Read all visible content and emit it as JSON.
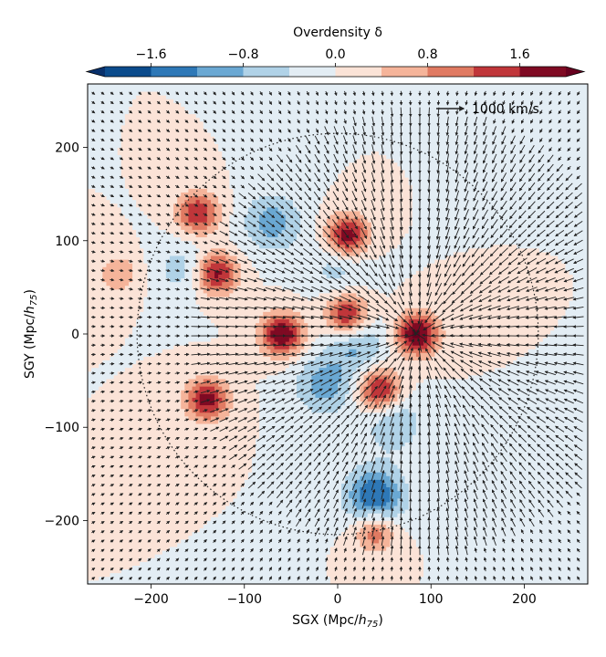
{
  "chart_data": {
    "type": "heatmap",
    "subtype": "contour-with-vector-field",
    "colorbar": {
      "label": "Overdensity δ",
      "ticks": [
        "−1.6",
        "−0.8",
        "0.0",
        "0.8",
        "1.6"
      ],
      "tick_values": [
        -1.6,
        -0.8,
        0.0,
        0.8,
        1.6
      ],
      "levels": [
        -2.0,
        -1.6,
        -1.2,
        -0.8,
        -0.4,
        0.0,
        0.4,
        0.8,
        1.2,
        1.6,
        2.0
      ],
      "colors": [
        "#0b4b8c",
        "#2e78b7",
        "#6aa8d3",
        "#b0d2e7",
        "#e3edf4",
        "#fbe3d7",
        "#f5b49a",
        "#e07a62",
        "#c0363a",
        "#7f0a23"
      ],
      "extend": "both",
      "under_color": "#08306b",
      "over_color": "#67001f"
    },
    "xlabel": "SGX (Mpc/h75)",
    "ylabel": "SGY (Mpc/h75)",
    "xlim": [
      -268,
      268
    ],
    "ylim": [
      -268,
      268
    ],
    "xticks": [
      "−200",
      "−100",
      "0",
      "100",
      "200"
    ],
    "xtick_values": [
      -200,
      -100,
      0,
      100,
      200
    ],
    "yticks": [
      "−200",
      "−100",
      "0",
      "100",
      "200"
    ],
    "ytick_values": [
      -200,
      -100,
      0,
      100,
      200
    ],
    "quiver_key": {
      "label": "1000 km/s",
      "value": 1000
    },
    "boundary_circle": {
      "center": [
        0,
        0
      ],
      "radius": 215,
      "style": "dotted"
    },
    "features": [
      {
        "kind": "overdense",
        "x": 85,
        "y": 0,
        "peak": 2.1
      },
      {
        "kind": "overdense",
        "x": 10,
        "y": 105,
        "peak": 2.0
      },
      {
        "kind": "overdense",
        "x": -60,
        "y": 0,
        "peak": 2.0
      },
      {
        "kind": "overdense",
        "x": -130,
        "y": 65,
        "peak": 1.8
      },
      {
        "kind": "overdense",
        "x": -150,
        "y": 130,
        "peak": 1.6
      },
      {
        "kind": "overdense",
        "x": -140,
        "y": -70,
        "peak": 1.8
      },
      {
        "kind": "overdense",
        "x": 45,
        "y": -60,
        "peak": 1.8
      },
      {
        "kind": "overdense",
        "x": 10,
        "y": 20,
        "peak": 1.8
      },
      {
        "kind": "overdense",
        "x": 40,
        "y": -210,
        "peak": 1.3
      },
      {
        "kind": "overdense",
        "x": -235,
        "y": 65,
        "peak": 0.7
      },
      {
        "kind": "underdense",
        "x": 40,
        "y": -175,
        "peak": -1.7
      },
      {
        "kind": "underdense",
        "x": -15,
        "y": -55,
        "peak": -1.0
      },
      {
        "kind": "underdense",
        "x": -70,
        "y": 120,
        "peak": -1.0
      },
      {
        "kind": "underdense",
        "x": 0,
        "y": 75,
        "peak": -0.6
      },
      {
        "kind": "underdense",
        "x": 60,
        "y": -95,
        "peak": -0.8
      },
      {
        "kind": "underdense",
        "x": 20,
        "y": -10,
        "peak": -0.9
      },
      {
        "kind": "underdense",
        "x": -165,
        "y": 70,
        "peak": -0.6
      }
    ],
    "velocity_field": {
      "attractor": [
        85,
        0
      ],
      "grid_spacing": 10
    }
  }
}
